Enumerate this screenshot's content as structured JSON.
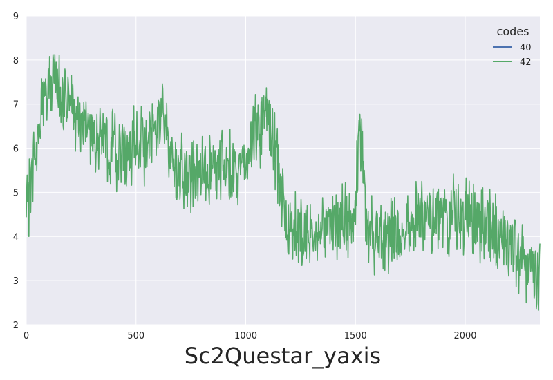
{
  "chart_data": {
    "type": "line",
    "title": "",
    "xlabel": "Sc2Questar_yaxis",
    "ylabel": "",
    "xlim": [
      0,
      2340
    ],
    "ylim": [
      2,
      9
    ],
    "xticks": [
      0,
      500,
      1000,
      1500,
      2000
    ],
    "yticks": [
      2,
      3,
      4,
      5,
      6,
      7,
      8,
      9
    ],
    "grid": true,
    "legend": {
      "title": "codes",
      "placement": "top-right"
    },
    "series": [
      {
        "name": "40",
        "color": "#4c72b0",
        "x": [],
        "y": []
      },
      {
        "name": "42",
        "color": "#55a868",
        "x": [
          0,
          20,
          50,
          80,
          120,
          150,
          200,
          250,
          300,
          350,
          400,
          450,
          500,
          550,
          600,
          620,
          650,
          700,
          750,
          800,
          850,
          900,
          950,
          1000,
          1040,
          1080,
          1120,
          1150,
          1180,
          1200,
          1250,
          1300,
          1350,
          1400,
          1450,
          1490,
          1510,
          1520,
          1540,
          1550,
          1600,
          1650,
          1700,
          1750,
          1800,
          1850,
          1900,
          1950,
          2000,
          2050,
          2100,
          2150,
          2200,
          2250,
          2300,
          2340
        ],
        "y": [
          4.8,
          5.0,
          6.3,
          7.1,
          7.6,
          7.2,
          7.0,
          6.5,
          6.3,
          6.2,
          5.9,
          5.8,
          6.2,
          6.1,
          6.4,
          7.0,
          5.8,
          5.4,
          5.4,
          5.5,
          5.5,
          5.6,
          5.5,
          5.6,
          6.3,
          6.6,
          6.3,
          5.4,
          4.6,
          4.1,
          4.0,
          4.1,
          4.2,
          4.2,
          4.3,
          4.5,
          5.6,
          6.6,
          5.0,
          4.1,
          4.0,
          4.1,
          4.2,
          4.3,
          4.4,
          4.3,
          4.4,
          4.5,
          4.4,
          4.3,
          4.2,
          4.0,
          3.8,
          3.6,
          3.3,
          3.1
        ]
      }
    ]
  }
}
